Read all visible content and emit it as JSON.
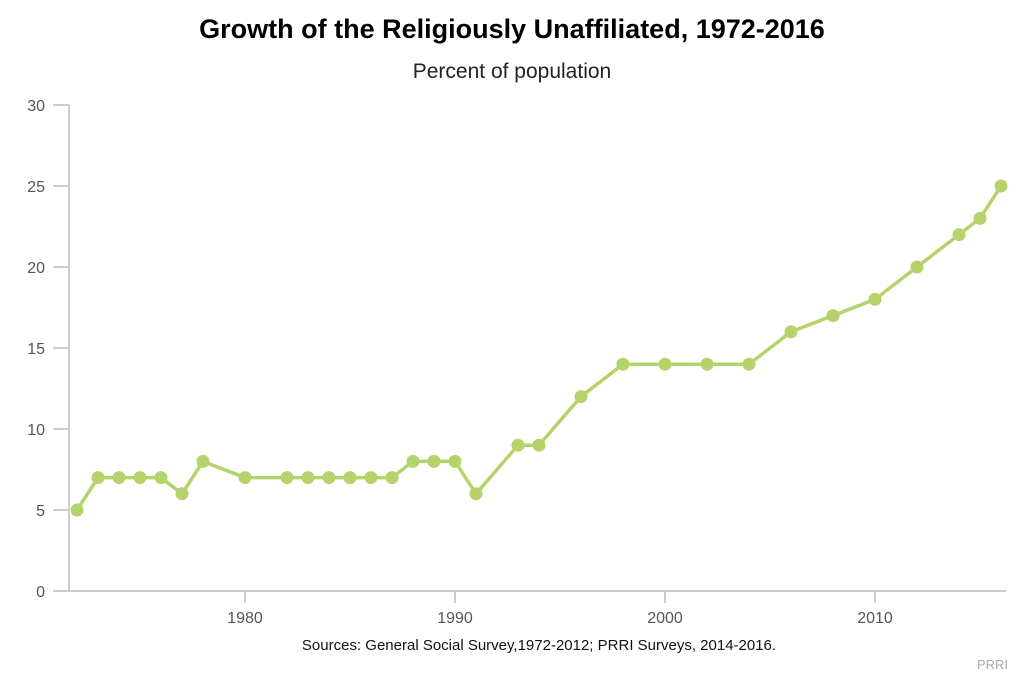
{
  "chart_data": {
    "type": "line",
    "title": "Growth of the Religiously Unaffiliated, 1972-2016",
    "subtitle": "Percent of population",
    "xlabel": "",
    "ylabel": "",
    "x": [
      1972,
      1973,
      1974,
      1975,
      1976,
      1977,
      1978,
      1980,
      1982,
      1983,
      1984,
      1985,
      1986,
      1987,
      1988,
      1989,
      1990,
      1991,
      1993,
      1994,
      1996,
      1998,
      2000,
      2002,
      2004,
      2006,
      2008,
      2010,
      2012,
      2014,
      2015,
      2016
    ],
    "series": [
      {
        "values": [
          5,
          7,
          7,
          7,
          7,
          6,
          8,
          7,
          7,
          7,
          7,
          7,
          7,
          7,
          8,
          8,
          8,
          6,
          9,
          9,
          12,
          14,
          14,
          14,
          14,
          16,
          17,
          18,
          20,
          22,
          23,
          25
        ],
        "color": "#b5d36b"
      }
    ],
    "xlim": [
      1972,
      2016.3
    ],
    "ylim": [
      0,
      30
    ],
    "xticks": [
      "1980",
      "1990",
      "2000",
      "2010"
    ],
    "yticks": [
      "0",
      "5",
      "10",
      "15",
      "20",
      "25",
      "30"
    ],
    "grid": false,
    "source": "Sources: General Social Survey,1972-2012; PRRI Surveys, 2014-2016.",
    "credit": "PRRI"
  }
}
